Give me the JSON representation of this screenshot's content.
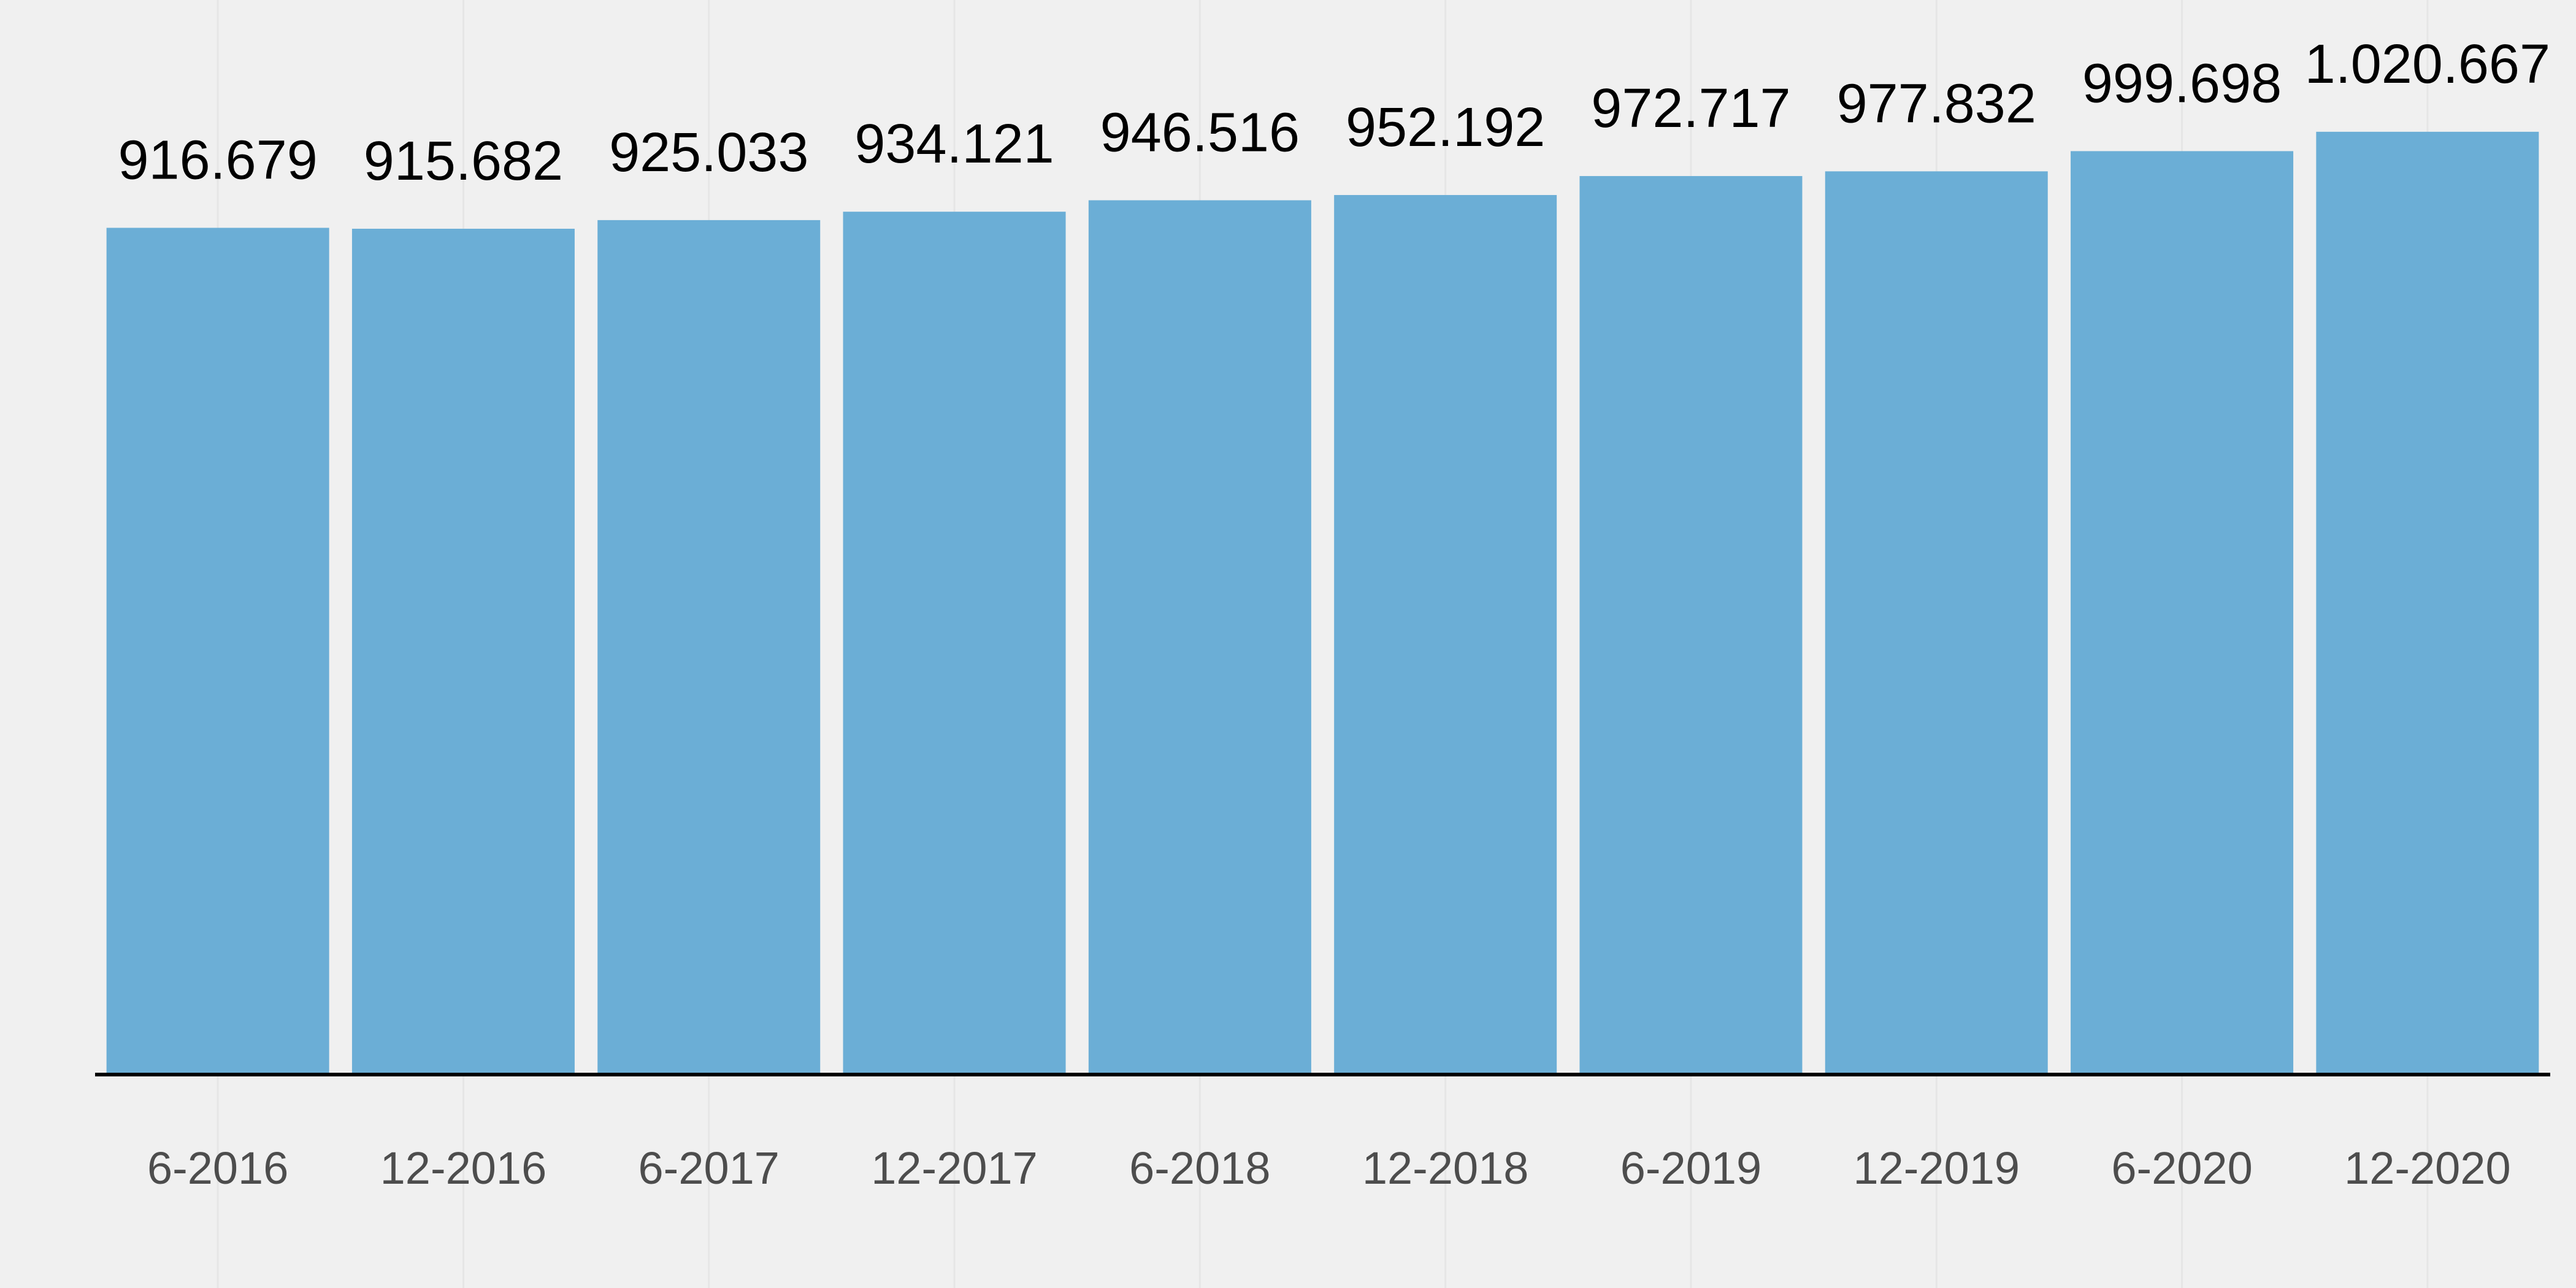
{
  "chart_data": {
    "type": "bar",
    "categories": [
      "6-2016",
      "12-2016",
      "6-2017",
      "12-2017",
      "6-2018",
      "12-2018",
      "6-2019",
      "12-2019",
      "6-2020",
      "12-2020"
    ],
    "values": [
      916679,
      915682,
      925033,
      934121,
      946516,
      952192,
      972717,
      977832,
      999698,
      1020667
    ],
    "value_labels": [
      "916.679",
      "915.682",
      "925.033",
      "934.121",
      "946.516",
      "952.192",
      "972.717",
      "977.832",
      "999.698",
      "1.020.667"
    ],
    "title": "",
    "xlabel": "",
    "ylabel": "",
    "ylim": [
      0,
      1160000
    ],
    "grid": "vertical-faint",
    "legend": "none",
    "colors": {
      "bar": "#6baed6",
      "background": "#f0f0f0",
      "grid": "#e6e6e6",
      "axis": "#000000",
      "value_text": "#000000",
      "tick_text": "#4d4d4d"
    }
  }
}
